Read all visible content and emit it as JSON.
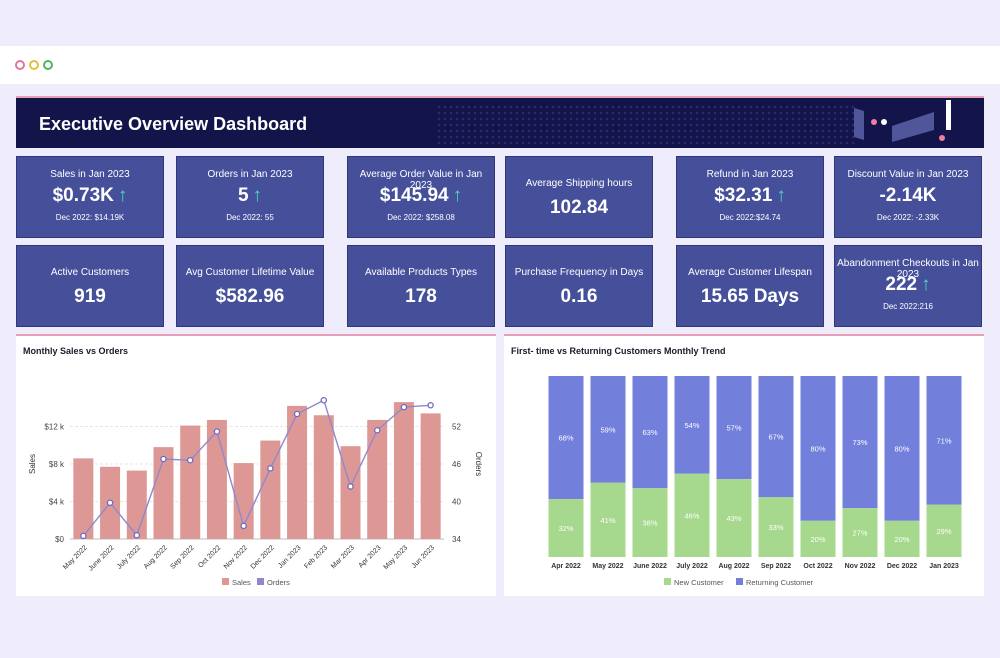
{
  "header": {
    "title": "Executive Overview Dashboard"
  },
  "colors": {
    "banner": "#13154a",
    "kpi": "#46509a",
    "sales": "#dd9896",
    "orders": "#8e89cc",
    "new_customer": "#a6d88d",
    "returning_customer": "#727fdb",
    "arrow": "#4ed8c4"
  },
  "kpis_row1": [
    {
      "title": "Sales in Jan 2023",
      "value": "$0.73K",
      "arrow": "↑",
      "sub": "Dec 2022: $14.19K"
    },
    {
      "title": "Orders in Jan 2023",
      "value": "5",
      "arrow": "↑",
      "sub": "Dec 2022: 55"
    },
    {
      "title": "Average Order Value in Jan 2023",
      "value": "$145.94",
      "arrow": "↑",
      "sub": "Dec 2022: $258.08"
    },
    {
      "title": "Average Shipping hours",
      "value": "102.84"
    },
    {
      "title": "Refund in Jan 2023",
      "value": "$32.31",
      "arrow": "↑",
      "sub": "Dec 2022:$24.74"
    },
    {
      "title": "Discount Value in Jan 2023",
      "value": "-2.14K",
      "sub": "Dec 2022:  -2.33K"
    }
  ],
  "kpis_row2": [
    {
      "title": "Active Customers",
      "value": "919"
    },
    {
      "title": "Avg Customer Lifetime Value",
      "value": "$582.96"
    },
    {
      "title": "Available Products Types",
      "value": "178"
    },
    {
      "title": "Purchase Frequency in Days",
      "value": "0.16"
    },
    {
      "title": "Average Customer Lifespan",
      "value": "15.65 Days"
    },
    {
      "title": "Abandonment Checkouts in Jan 2023",
      "value": "222",
      "arrow": "↑",
      "sub": "Dec 2022:216"
    }
  ],
  "chart_data": [
    {
      "type": "bar",
      "title": "Monthly Sales vs Orders",
      "categories": [
        "May 2022",
        "June 2022",
        "July 2022",
        "Aug 2022",
        "Sep 2022",
        "Oct 2022",
        "Nov 2022",
        "Dec 2022",
        "Jan 2023",
        "Feb 2023",
        "Mar 2023",
        "Apr 2023",
        "May 2023",
        "Jun 2023"
      ],
      "series": [
        {
          "name": "Sales",
          "type": "bar",
          "axis": "left",
          "values": [
            8600,
            7700,
            7300,
            9800,
            12100,
            12700,
            8100,
            10500,
            14200,
            13200,
            9900,
            12700,
            14600,
            13400
          ]
        },
        {
          "name": "Orders",
          "type": "line",
          "axis": "right",
          "values": [
            34.5,
            39.8,
            34.6,
            46.8,
            46.6,
            51.2,
            36.1,
            45.3,
            54,
            56.2,
            42.4,
            51.4,
            55.1,
            55.4
          ]
        }
      ],
      "ylabel": "Sales",
      "y2label": "Orders",
      "ylim": [
        0,
        16000
      ],
      "y2lim": [
        34,
        58
      ],
      "yticks": [
        "$0",
        "$4 k",
        "$8 k",
        "$12 k"
      ],
      "y2ticks": [
        "34",
        "40",
        "46",
        "52"
      ],
      "legend": [
        "Sales",
        "Orders"
      ],
      "legend_position": "bottom",
      "grid": true
    },
    {
      "type": "bar",
      "stacked": true,
      "title": "First- time vs Returning  Customers Monthly Trend",
      "categories": [
        "Apr 2022",
        "May 2022",
        "June 2022",
        "July 2022",
        "Aug 2022",
        "Sep 2022",
        "Oct 2022",
        "Nov 2022",
        "Dec 2022",
        "Jan 2023"
      ],
      "series": [
        {
          "name": "New Customer",
          "values": [
            32,
            41,
            38,
            46,
            43,
            33,
            20,
            27,
            20,
            29
          ],
          "labels": [
            "32%",
            "41%",
            "38%",
            "46%",
            "43%",
            "33%",
            "20%",
            "27%",
            "20%",
            "29%"
          ]
        },
        {
          "name": "Returning Customer",
          "values": [
            68,
            59,
            63,
            54,
            57,
            67,
            80,
            73,
            80,
            71
          ],
          "labels": [
            "68%",
            "59%",
            "63%",
            "54%",
            "57%",
            "67%",
            "80%",
            "73%",
            "80%",
            "71%"
          ]
        }
      ],
      "legend": [
        "New Customer",
        "Returning Customer"
      ],
      "legend_position": "bottom"
    }
  ]
}
